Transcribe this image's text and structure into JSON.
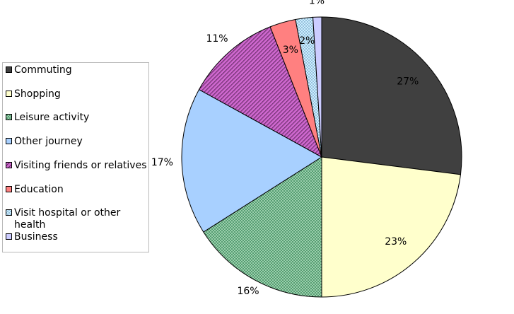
{
  "chart_data": {
    "type": "pie",
    "title": "",
    "categories": [
      "Commuting",
      "Shopping",
      "Leisure activity",
      "Other journey",
      "Visiting friends or relatives",
      "Education",
      "Visit hospital or other health",
      "Business"
    ],
    "values": [
      27,
      23,
      16,
      17,
      11,
      3,
      2,
      1
    ],
    "value_labels": [
      "27%",
      "23%",
      "16%",
      "17%",
      "11%",
      "3%",
      "2%",
      "1%"
    ],
    "legend": {
      "position": "left",
      "entries": [
        "Commuting",
        "Shopping",
        "Leisure activity",
        "Other journey",
        "Visiting friends or relatives",
        "Education",
        "Visit hospital or other health",
        "Business"
      ]
    },
    "colors": [
      "#404040",
      "#ffffcc",
      "#a8d8b8",
      "#a8d0ff",
      "#cc66cc",
      "#ff8080",
      "#cceeff",
      "#ccccff"
    ],
    "patterns": [
      "solid",
      "solid",
      "crosshatch",
      "solid",
      "diagonal",
      "solid",
      "dots",
      "solid"
    ],
    "start_angle_deg": 0,
    "direction": "clockwise"
  }
}
